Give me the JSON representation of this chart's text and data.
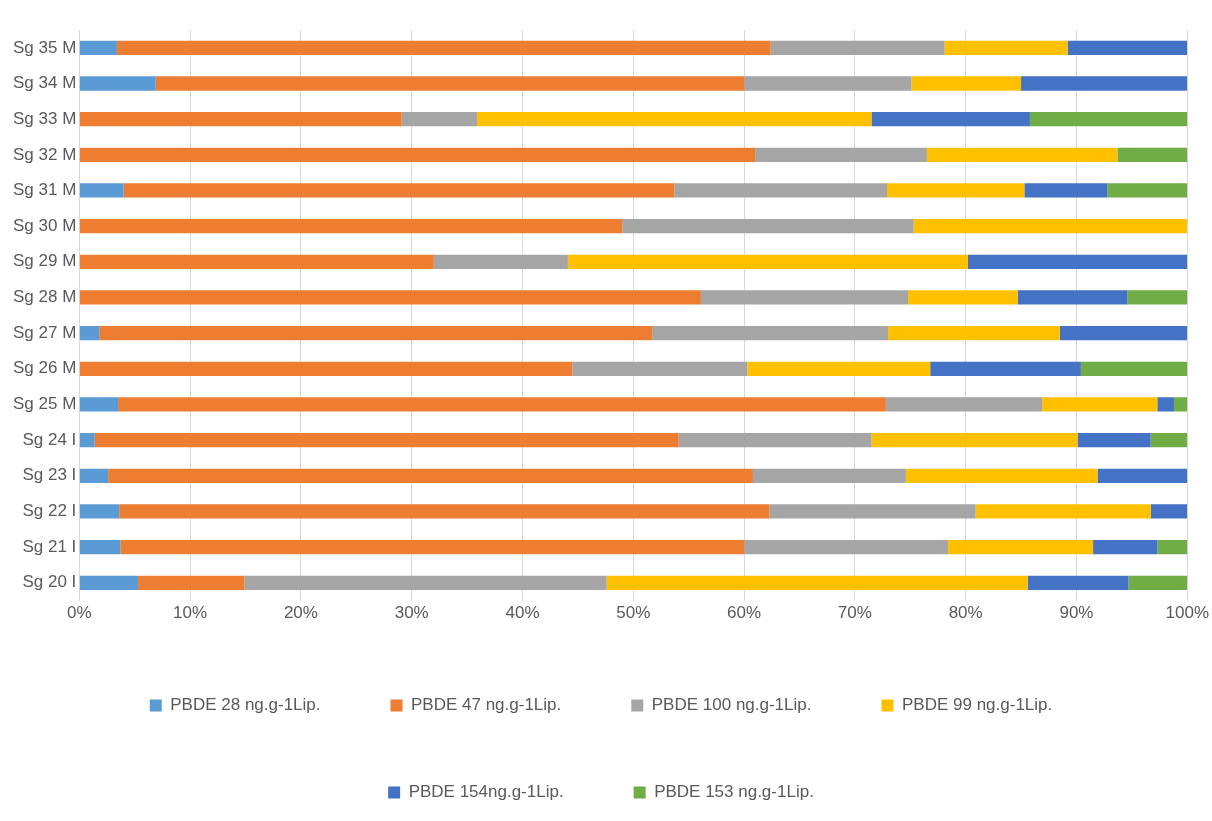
{
  "chart_data": {
    "type": "bar",
    "orientation": "horizontal",
    "stacked": true,
    "categories": [
      "Sg 35 M",
      "Sg 34 M",
      "Sg 33 M",
      "Sg 32 M",
      "Sg 31 M",
      "Sg 30 M",
      "Sg 29 M",
      "Sg 28 M",
      "Sg 27 M",
      "Sg 26 M",
      "Sg 25 M",
      "Sg 24 I",
      "Sg 23 I",
      "Sg 22 I",
      "Sg 21 I",
      "Sg 20 I"
    ],
    "series": [
      {
        "name": "PBDE 28 ng.g-1Lip.",
        "color": "#5b9bd5",
        "values": [
          3.4,
          6.9,
          0,
          0,
          4.0,
          0,
          0,
          0,
          1.8,
          0,
          3.5,
          1.4,
          2.6,
          3.6,
          3.7,
          5.3
        ]
      },
      {
        "name": "PBDE 47 ng.g-1Lip.",
        "color": "#ed7d31",
        "values": [
          59.0,
          53.1,
          29.1,
          61.0,
          49.7,
          49.0,
          32.0,
          56.1,
          49.9,
          44.5,
          69.3,
          52.7,
          58.2,
          58.7,
          56.3,
          9.6
        ]
      },
      {
        "name": "PBDE 100 ng.g-1Lip.",
        "color": "#a5a5a5",
        "values": [
          15.7,
          15.1,
          6.8,
          15.5,
          19.2,
          26.3,
          12.1,
          18.7,
          21.3,
          15.8,
          14.1,
          17.4,
          13.8,
          18.6,
          18.4,
          32.7
        ]
      },
      {
        "name": "PBDE 99 ng.g-1Lip.",
        "color": "#ffc000",
        "values": [
          11.1,
          9.9,
          35.6,
          17.2,
          12.4,
          24.7,
          36.1,
          9.9,
          15.5,
          16.5,
          10.4,
          18.6,
          17.3,
          15.8,
          13.1,
          38.0
        ]
      },
      {
        "name": "PBDE 154ng.g-1Lip.",
        "color": "#4472c4",
        "values": [
          10.8,
          15.0,
          14.3,
          0,
          7.5,
          0,
          19.8,
          9.9,
          11.5,
          13.6,
          1.5,
          6.6,
          8.1,
          3.3,
          5.8,
          9.1
        ]
      },
      {
        "name": "PBDE 153 ng.g-1Lip.",
        "color": "#70ad47",
        "values": [
          0,
          0,
          14.2,
          6.3,
          7.2,
          0,
          0,
          5.4,
          0,
          9.6,
          1.2,
          3.3,
          0,
          0,
          2.7,
          5.3
        ]
      }
    ],
    "xlim": [
      0,
      100
    ],
    "xticks": [
      {
        "value": 0,
        "label": "0%"
      },
      {
        "value": 10,
        "label": "10%"
      },
      {
        "value": 20,
        "label": "20%"
      },
      {
        "value": 30,
        "label": "30%"
      },
      {
        "value": 40,
        "label": "40%"
      },
      {
        "value": 50,
        "label": "50%"
      },
      {
        "value": 60,
        "label": "60%"
      },
      {
        "value": 70,
        "label": "70%"
      },
      {
        "value": 80,
        "label": "80%"
      },
      {
        "value": 90,
        "label": "90%"
      },
      {
        "value": 100,
        "label": "100%"
      }
    ],
    "grid": "x",
    "legend": "bottom"
  }
}
